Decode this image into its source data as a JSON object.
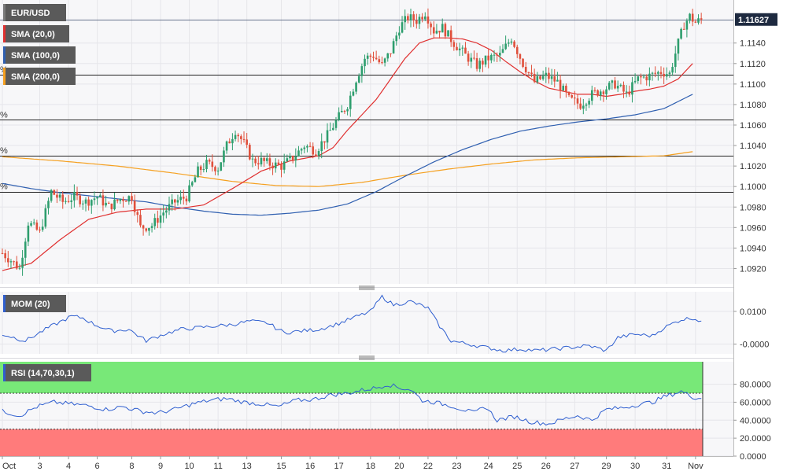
{
  "chart_data": {
    "type": "candlestick",
    "symbol": "EUR/USD",
    "last_price_label": "1.11627",
    "x_tick_labels": [
      {
        "label": "Oct",
        "bar": 0
      },
      {
        "label": "3",
        "bar": 13
      },
      {
        "label": "4",
        "bar": 23
      },
      {
        "label": "6",
        "bar": 33
      },
      {
        "label": "8",
        "bar": 45
      },
      {
        "label": "9",
        "bar": 55
      },
      {
        "label": "10",
        "bar": 65
      },
      {
        "label": "11",
        "bar": 75
      },
      {
        "label": "13",
        "bar": 85
      },
      {
        "label": "15",
        "bar": 97
      },
      {
        "label": "16",
        "bar": 107
      },
      {
        "label": "17",
        "bar": 117
      },
      {
        "label": "18",
        "bar": 128
      },
      {
        "label": "20",
        "bar": 138
      },
      {
        "label": "22",
        "bar": 148
      },
      {
        "label": "23",
        "bar": 158
      },
      {
        "label": "24",
        "bar": 169
      },
      {
        "label": "25",
        "bar": 179
      },
      {
        "label": "26",
        "bar": 189
      },
      {
        "label": "27",
        "bar": 199
      },
      {
        "label": "29",
        "bar": 210
      },
      {
        "label": "30",
        "bar": 220
      },
      {
        "label": "31",
        "bar": 231
      },
      {
        "label": "Nov",
        "bar": 241
      }
    ],
    "main_panel": {
      "ylim": [
        1.0905,
        1.1182
      ],
      "y_ticks": [
        1.092,
        1.094,
        1.096,
        1.098,
        1.1,
        1.102,
        1.104,
        1.106,
        1.108,
        1.11,
        1.112,
        1.114
      ],
      "y_tick_labels": [
        "1.0920",
        "1.0940",
        "1.0960",
        "1.0980",
        "1.1000",
        "1.1020",
        "1.1040",
        "1.1060",
        "1.1080",
        "1.1100",
        "1.1120",
        "1.1140"
      ],
      "horizontal_lines": [
        1.1109,
        1.1065,
        1.103,
        1.0995,
        1.1163
      ],
      "fib_marks": [
        "%",
        "%",
        "%",
        "%"
      ],
      "indicators": [
        {
          "name": "SMA (20,0)",
          "color": "#e03030"
        },
        {
          "name": "SMA (100,0)",
          "color": "#2f5fb0"
        },
        {
          "name": "SMA (200,0)",
          "color": "#f5a020"
        }
      ],
      "up_color": "#2e9e6e",
      "down_color": "#e0503c",
      "anchors": [
        [
          0,
          1.0935
        ],
        [
          3,
          1.0928
        ],
        [
          6,
          1.092
        ],
        [
          9,
          1.0965
        ],
        [
          13,
          1.0955
        ],
        [
          17,
          1.0995
        ],
        [
          21,
          1.0985
        ],
        [
          25,
          1.099
        ],
        [
          29,
          1.0985
        ],
        [
          33,
          1.099
        ],
        [
          37,
          1.098
        ],
        [
          41,
          1.0988
        ],
        [
          45,
          1.099
        ],
        [
          48,
          1.096
        ],
        [
          52,
          1.0962
        ],
        [
          56,
          1.0975
        ],
        [
          60,
          1.0985
        ],
        [
          64,
          1.099
        ],
        [
          68,
          1.1015
        ],
        [
          71,
          1.1022
        ],
        [
          75,
          1.1018
        ],
        [
          78,
          1.104
        ],
        [
          81,
          1.1055
        ],
        [
          84,
          1.1042
        ],
        [
          87,
          1.1025
        ],
        [
          90,
          1.1025
        ],
        [
          93,
          1.1022
        ],
        [
          97,
          1.102
        ],
        [
          101,
          1.1028
        ],
        [
          105,
          1.104
        ],
        [
          109,
          1.1035
        ],
        [
          113,
          1.105
        ],
        [
          117,
          1.1068
        ],
        [
          120,
          1.108
        ],
        [
          123,
          1.1105
        ],
        [
          126,
          1.1125
        ],
        [
          129,
          1.1128
        ],
        [
          132,
          1.1118
        ],
        [
          135,
          1.1132
        ],
        [
          138,
          1.1155
        ],
        [
          141,
          1.1165
        ],
        [
          144,
          1.1162
        ],
        [
          147,
          1.117
        ],
        [
          150,
          1.1152
        ],
        [
          153,
          1.1155
        ],
        [
          157,
          1.114
        ],
        [
          161,
          1.1128
        ],
        [
          165,
          1.1118
        ],
        [
          169,
          1.1125
        ],
        [
          173,
          1.1128
        ],
        [
          177,
          1.1145
        ],
        [
          181,
          1.112
        ],
        [
          185,
          1.1102
        ],
        [
          189,
          1.1108
        ],
        [
          193,
          1.1102
        ],
        [
          197,
          1.1085
        ],
        [
          201,
          1.108
        ],
        [
          205,
          1.109
        ],
        [
          209,
          1.1095
        ],
        [
          213,
          1.11
        ],
        [
          217,
          1.109
        ],
        [
          221,
          1.1105
        ],
        [
          225,
          1.1108
        ],
        [
          229,
          1.1112
        ],
        [
          232,
          1.111
        ],
        [
          235,
          1.114
        ],
        [
          237,
          1.1158
        ],
        [
          239,
          1.1166
        ],
        [
          241,
          1.116
        ],
        [
          243,
          1.1163
        ]
      ],
      "sma20_anchors": [
        [
          0,
          1.0918
        ],
        [
          10,
          1.0925
        ],
        [
          20,
          1.0948
        ],
        [
          30,
          1.0968
        ],
        [
          40,
          1.0975
        ],
        [
          50,
          1.0978
        ],
        [
          60,
          1.0978
        ],
        [
          70,
          1.0982
        ],
        [
          80,
          1.0998
        ],
        [
          90,
          1.1015
        ],
        [
          100,
          1.1025
        ],
        [
          110,
          1.103
        ],
        [
          115,
          1.1038
        ],
        [
          120,
          1.1055
        ],
        [
          125,
          1.107
        ],
        [
          130,
          1.1085
        ],
        [
          135,
          1.1105
        ],
        [
          140,
          1.1125
        ],
        [
          145,
          1.114
        ],
        [
          150,
          1.1145
        ],
        [
          155,
          1.1145
        ],
        [
          160,
          1.1144
        ],
        [
          165,
          1.114
        ],
        [
          170,
          1.1133
        ],
        [
          175,
          1.1122
        ],
        [
          180,
          1.1112
        ],
        [
          185,
          1.1103
        ],
        [
          190,
          1.1096
        ],
        [
          195,
          1.1093
        ],
        [
          200,
          1.109
        ],
        [
          205,
          1.109
        ],
        [
          210,
          1.1088
        ],
        [
          215,
          1.109
        ],
        [
          220,
          1.1093
        ],
        [
          225,
          1.1095
        ],
        [
          230,
          1.1098
        ],
        [
          235,
          1.1105
        ],
        [
          240,
          1.112
        ]
      ],
      "sma100_anchors": [
        [
          0,
          1.1003
        ],
        [
          10,
          1.0998
        ],
        [
          20,
          1.0994
        ],
        [
          30,
          1.0991
        ],
        [
          40,
          1.0988
        ],
        [
          50,
          1.0985
        ],
        [
          60,
          1.098
        ],
        [
          70,
          1.0976
        ],
        [
          80,
          1.0973
        ],
        [
          90,
          1.0972
        ],
        [
          100,
          1.0974
        ],
        [
          110,
          1.0977
        ],
        [
          120,
          1.0983
        ],
        [
          130,
          1.0995
        ],
        [
          140,
          1.101
        ],
        [
          150,
          1.1024
        ],
        [
          160,
          1.1036
        ],
        [
          170,
          1.1046
        ],
        [
          180,
          1.1054
        ],
        [
          190,
          1.1059
        ],
        [
          200,
          1.1063
        ],
        [
          210,
          1.1066
        ],
        [
          220,
          1.107
        ],
        [
          230,
          1.1076
        ],
        [
          240,
          1.109
        ]
      ],
      "sma200_anchors": [
        [
          0,
          1.1029
        ],
        [
          20,
          1.1025
        ],
        [
          40,
          1.102
        ],
        [
          60,
          1.1013
        ],
        [
          80,
          1.1005
        ],
        [
          95,
          1.1001
        ],
        [
          110,
          1.1
        ],
        [
          125,
          1.1004
        ],
        [
          140,
          1.1011
        ],
        [
          155,
          1.1017
        ],
        [
          170,
          1.1022
        ],
        [
          185,
          1.1026
        ],
        [
          200,
          1.1028
        ],
        [
          215,
          1.1029
        ],
        [
          230,
          1.103
        ],
        [
          240,
          1.1034
        ]
      ]
    },
    "mom_panel": {
      "name": "MOM (20)",
      "color": "#2f5fd0",
      "ylim": [
        -0.003,
        0.016
      ],
      "y_ticks": [
        0.01,
        0.0
      ],
      "y_tick_labels": [
        "0.0100",
        "-0.0000"
      ],
      "anchors": [
        [
          0,
          0.003
        ],
        [
          8,
          0.001
        ],
        [
          16,
          0.005
        ],
        [
          24,
          0.0085
        ],
        [
          28,
          0.008
        ],
        [
          32,
          0.006
        ],
        [
          38,
          0.004
        ],
        [
          44,
          0.0045
        ],
        [
          50,
          0.001
        ],
        [
          56,
          0.003
        ],
        [
          62,
          0.0045
        ],
        [
          68,
          0.005
        ],
        [
          74,
          0.0055
        ],
        [
          80,
          0.006
        ],
        [
          86,
          0.007
        ],
        [
          92,
          0.0065
        ],
        [
          98,
          0.0035
        ],
        [
          104,
          0.004
        ],
        [
          110,
          0.0045
        ],
        [
          116,
          0.006
        ],
        [
          122,
          0.008
        ],
        [
          128,
          0.01
        ],
        [
          132,
          0.0145
        ],
        [
          136,
          0.012
        ],
        [
          142,
          0.013
        ],
        [
          148,
          0.011
        ],
        [
          152,
          0.0055
        ],
        [
          156,
          0.001
        ],
        [
          162,
          0.0
        ],
        [
          168,
          -0.001
        ],
        [
          174,
          -0.002
        ],
        [
          180,
          -0.0015
        ],
        [
          186,
          -0.002
        ],
        [
          192,
          -0.0015
        ],
        [
          198,
          -0.001
        ],
        [
          204,
          -0.0005
        ],
        [
          210,
          -0.002
        ],
        [
          214,
          0.002
        ],
        [
          220,
          0.003
        ],
        [
          226,
          0.0025
        ],
        [
          230,
          0.005
        ],
        [
          236,
          0.0075
        ],
        [
          240,
          0.008
        ],
        [
          243,
          0.007
        ]
      ]
    },
    "rsi_panel": {
      "name": "RSI (14,70,30,1)",
      "color": "#2f5fd0",
      "ylim": [
        0,
        105
      ],
      "y_ticks": [
        80,
        60,
        40,
        20,
        0
      ],
      "y_tick_labels": [
        "80.0000",
        "60.0000",
        "40.0000",
        "20.0000",
        "0.0000"
      ],
      "overbought": 70,
      "oversold": 30,
      "overbought_color": "#78e878",
      "oversold_color": "#ff7b7b",
      "anchors": [
        [
          0,
          50
        ],
        [
          6,
          45
        ],
        [
          12,
          55
        ],
        [
          18,
          60
        ],
        [
          24,
          58
        ],
        [
          30,
          56
        ],
        [
          36,
          52
        ],
        [
          42,
          55
        ],
        [
          48,
          50
        ],
        [
          54,
          48
        ],
        [
          60,
          52
        ],
        [
          66,
          58
        ],
        [
          72,
          62
        ],
        [
          78,
          64
        ],
        [
          84,
          60
        ],
        [
          90,
          58
        ],
        [
          96,
          55
        ],
        [
          102,
          62
        ],
        [
          108,
          63
        ],
        [
          114,
          68
        ],
        [
          120,
          70
        ],
        [
          126,
          74
        ],
        [
          130,
          76
        ],
        [
          134,
          80
        ],
        [
          138,
          76
        ],
        [
          142,
          74
        ],
        [
          146,
          62
        ],
        [
          150,
          60
        ],
        [
          156,
          56
        ],
        [
          160,
          52
        ],
        [
          164,
          48
        ],
        [
          168,
          55
        ],
        [
          172,
          40
        ],
        [
          178,
          44
        ],
        [
          184,
          38
        ],
        [
          190,
          36
        ],
        [
          196,
          42
        ],
        [
          200,
          45
        ],
        [
          205,
          40
        ],
        [
          210,
          52
        ],
        [
          216,
          54
        ],
        [
          222,
          58
        ],
        [
          226,
          60
        ],
        [
          230,
          66
        ],
        [
          236,
          72
        ],
        [
          240,
          66
        ],
        [
          243,
          64
        ]
      ]
    }
  }
}
